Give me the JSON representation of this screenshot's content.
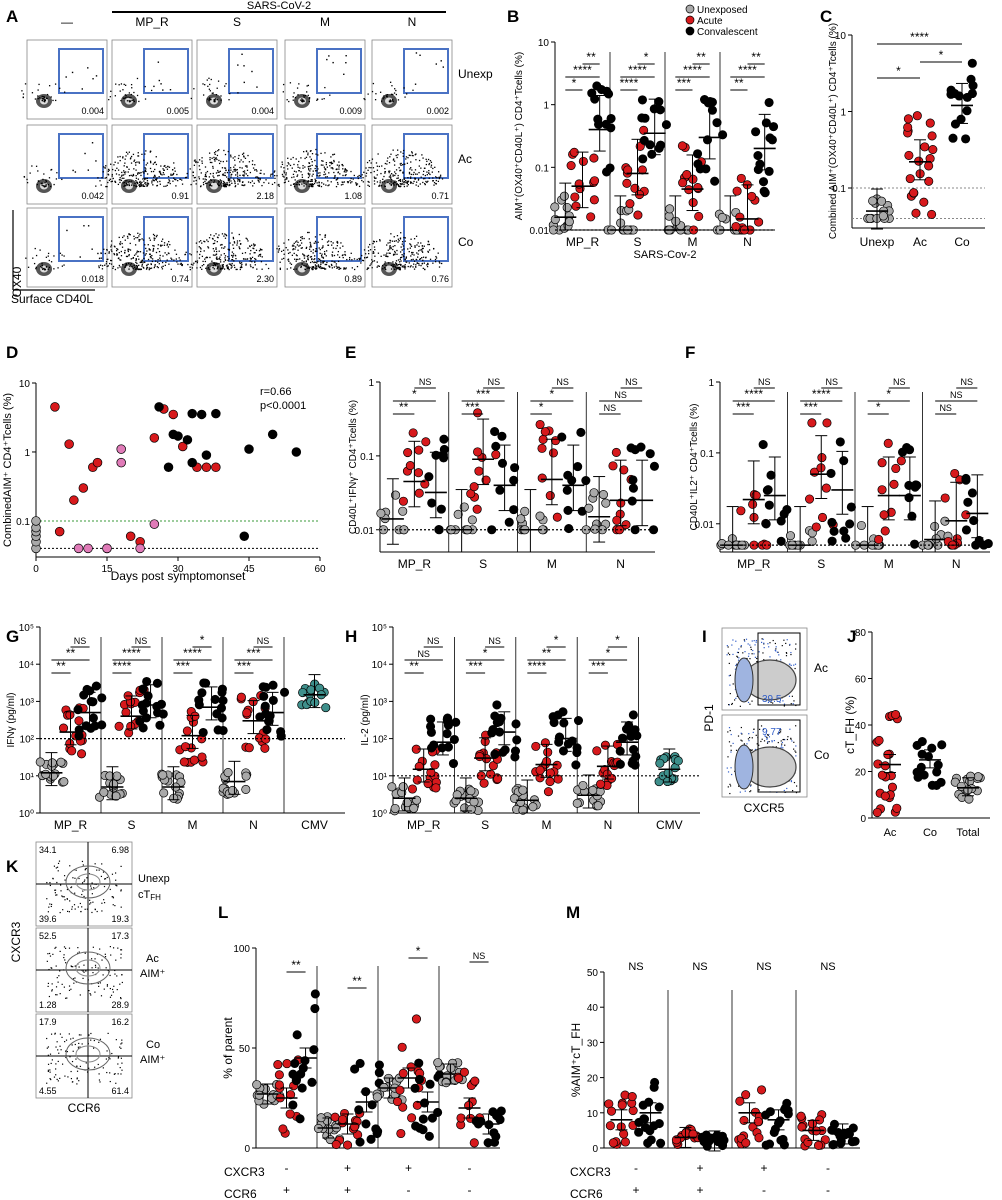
{
  "colors": {
    "unexposed": "#a9a9a9",
    "acute": "#d7191c",
    "convalescent": "#000000",
    "pink": "#e07bb8",
    "cmv": "#3e8f8b",
    "gate": "#4a72c4",
    "ref_green": "#3a9a3a",
    "cfh_blue": "#2f5cc8"
  },
  "panel_A": {
    "letter": "A",
    "col_headers": [
      "—",
      "MP_R",
      "S",
      "M",
      "N"
    ],
    "super_header": "SARS-CoV-2",
    "row_labels": [
      "Unexp",
      "Ac",
      "Co"
    ],
    "values": [
      [
        "0.004",
        "0.005",
        "0.004",
        "0.009",
        "0.002"
      ],
      [
        "0.042",
        "0.91",
        "2.18",
        "1.08",
        "0.71"
      ],
      [
        "0.018",
        "0.74",
        "2.30",
        "0.89",
        "0.76"
      ]
    ],
    "x_axis": "Surface CD40L",
    "y_axis": "OX40"
  },
  "chart_data": [
    {
      "id": "B",
      "type": "scatter",
      "letter": "B",
      "ylabel": "AIM⁺(OX40⁺CD40L⁺) CD4⁺Tcells (%)",
      "xlabel": "SARS-Cov-2",
      "scale": "log",
      "ylim": [
        0.01,
        10
      ],
      "yticks": [
        "0.01",
        "0.1",
        "1",
        "10"
      ],
      "groups": [
        "MP_R",
        "S",
        "M",
        "N"
      ],
      "legend": [
        "Unexposed",
        "Acute",
        "Convalescent"
      ],
      "median_bars": [
        [
          0.016,
          0.05,
          0.4
        ],
        [
          0.01,
          0.08,
          0.35
        ],
        [
          0.01,
          0.045,
          0.3
        ],
        [
          0.01,
          0.015,
          0.2
        ]
      ],
      "significance": [
        [
          "*",
          "****",
          "**"
        ],
        [
          "****",
          "****",
          "*"
        ],
        [
          "***",
          "****",
          "**"
        ],
        [
          "**",
          "****",
          "**"
        ]
      ]
    },
    {
      "id": "C",
      "type": "scatter",
      "letter": "C",
      "ylabel": "Combined AIM⁺(OX40⁺CD40L⁺) CD4⁺Tcells (%)",
      "scale": "log",
      "ylim": [
        0.03,
        10
      ],
      "yticks": [
        "0.1",
        "1",
        "10"
      ],
      "categories": [
        "Unexp",
        "Ac",
        "Co"
      ],
      "median_bars": [
        0.05,
        0.22,
        1.2
      ],
      "significance": [
        "****",
        "*",
        "*"
      ]
    },
    {
      "id": "D",
      "type": "scatter",
      "letter": "D",
      "ylabel": "CombinedAIM⁺ CD4⁺Tcells (%)",
      "xlabel": "Days post symptomonset",
      "scale": "log",
      "ylim": [
        0.03,
        10
      ],
      "xlim": [
        0,
        60
      ],
      "xticks": [
        "0",
        "15",
        "30",
        "45",
        "60"
      ],
      "yticks": [
        "0.1",
        "1",
        "10"
      ],
      "stats": [
        "r=0.66",
        "p<0.0001"
      ],
      "points_acute": [
        [
          4,
          4.5
        ],
        [
          5,
          0.07
        ],
        [
          7,
          1.3
        ],
        [
          8,
          0.2
        ],
        [
          10,
          0.3
        ],
        [
          12,
          0.6
        ],
        [
          13,
          0.7
        ],
        [
          15,
          0.04
        ],
        [
          20,
          0.06
        ],
        [
          22,
          0.05
        ],
        [
          25,
          1.6
        ],
        [
          27,
          4.2
        ],
        [
          29,
          3.5
        ],
        [
          31,
          1.2
        ],
        [
          34,
          0.6
        ],
        [
          36,
          0.6
        ],
        [
          38,
          0.6
        ]
      ],
      "points_conv": [
        [
          26,
          4.5
        ],
        [
          28,
          0.6
        ],
        [
          29,
          1.8
        ],
        [
          30,
          1.7
        ],
        [
          32,
          1.5
        ],
        [
          33,
          0.7
        ],
        [
          33,
          3.6
        ],
        [
          35,
          3.5
        ],
        [
          36,
          0.9
        ],
        [
          38,
          3.6
        ],
        [
          44,
          0.06
        ],
        [
          45,
          1.1
        ],
        [
          50,
          1.8
        ],
        [
          55,
          1.0
        ]
      ],
      "points_pink": [
        [
          18,
          1.1
        ],
        [
          18,
          0.7
        ],
        [
          22,
          0.04
        ],
        [
          25,
          0.09
        ],
        [
          9,
          0.04
        ],
        [
          11,
          0.04
        ],
        [
          15,
          0.04
        ]
      ],
      "points_unexp": [
        [
          0,
          0.04
        ],
        [
          0,
          0.05
        ],
        [
          0,
          0.06
        ],
        [
          0,
          0.07
        ],
        [
          0,
          0.08
        ],
        [
          0,
          0.1
        ]
      ]
    },
    {
      "id": "E",
      "type": "scatter",
      "letter": "E",
      "ylabel": "CD40L⁺IFNγ⁺ CD4⁺Tcells (%)",
      "scale": "log",
      "ylim": [
        0.005,
        1
      ],
      "yticks": [
        "0.01",
        "0.1",
        "1"
      ],
      "groups": [
        "MP_R",
        "S",
        "M",
        "N"
      ],
      "median_bars": [
        [
          0.014,
          0.045,
          0.032
        ],
        [
          0.01,
          0.09,
          0.04
        ],
        [
          0.01,
          0.048,
          0.04
        ],
        [
          0.015,
          0.025,
          0.025
        ]
      ],
      "significance": [
        [
          "**",
          "*",
          "NS"
        ],
        [
          "***",
          "***",
          "NS"
        ],
        [
          "*",
          "*",
          "NS"
        ],
        [
          "NS",
          "NS",
          "NS"
        ]
      ]
    },
    {
      "id": "F",
      "type": "scatter",
      "letter": "F",
      "ylabel": "CD40L⁺IL2⁺ CD4⁺Tcells (%)",
      "scale": "log",
      "ylim": [
        0.004,
        1
      ],
      "yticks": [
        "0.01",
        "0.1",
        "1"
      ],
      "groups": [
        "MP_R",
        "S",
        "M",
        "N"
      ],
      "median_bars": [
        [
          0.005,
          0.022,
          0.025
        ],
        [
          0.005,
          0.05,
          0.03
        ],
        [
          0.005,
          0.025,
          0.025
        ],
        [
          0.006,
          0.011,
          0.014
        ]
      ],
      "significance": [
        [
          "***",
          "****",
          "NS"
        ],
        [
          "***",
          "****",
          "NS"
        ],
        [
          "*",
          "*",
          "NS"
        ],
        [
          "NS",
          "NS",
          "NS"
        ]
      ]
    },
    {
      "id": "G",
      "type": "scatter",
      "letter": "G",
      "ylabel": "IFNγ (pg/ml)",
      "scale": "log",
      "ylim": [
        1,
        100000
      ],
      "yticks": [
        "10⁰",
        "10¹",
        "10²",
        "10³",
        "10⁴",
        "10⁵"
      ],
      "groups": [
        "MP_R",
        "S",
        "M",
        "N",
        "CMV"
      ],
      "median_bars": [
        [
          12,
          150,
          500
        ],
        [
          5,
          400,
          800
        ],
        [
          5,
          120,
          700
        ],
        [
          7,
          300,
          500
        ],
        [
          1500
        ]
      ],
      "significance": [
        [
          "**",
          "**",
          "NS"
        ],
        [
          "****",
          "****",
          "NS"
        ],
        [
          "***",
          "****",
          "*"
        ],
        [
          "***",
          "***",
          "NS"
        ]
      ]
    },
    {
      "id": "H",
      "type": "scatter",
      "letter": "H",
      "ylabel": "IL-2 (pg/ml)",
      "scale": "log",
      "ylim": [
        1,
        100000
      ],
      "yticks": [
        "10⁰",
        "10¹",
        "10²",
        "10³",
        "10⁴",
        "10⁵"
      ],
      "groups": [
        "MP_R",
        "S",
        "M",
        "N",
        "CMV"
      ],
      "median_bars": [
        [
          2.5,
          15,
          80
        ],
        [
          2.5,
          30,
          150
        ],
        [
          2.2,
          20,
          100
        ],
        [
          3,
          18,
          80
        ],
        [
          15
        ]
      ],
      "significance": [
        [
          "**",
          "NS",
          "NS"
        ],
        [
          "***",
          "*",
          "NS"
        ],
        [
          "****",
          "**",
          "*"
        ],
        [
          "***",
          "*",
          "*"
        ]
      ]
    },
    {
      "id": "J",
      "type": "scatter",
      "letter": "J",
      "ylabel": "cT_FH (%)",
      "ylim": [
        0,
        80
      ],
      "yticks": [
        "0",
        "20",
        "40",
        "60",
        "80"
      ],
      "categories": [
        "Ac",
        "Co",
        "Total"
      ],
      "median_bars": [
        23,
        25,
        13
      ]
    },
    {
      "id": "L",
      "type": "scatter",
      "letter": "L",
      "ylabel": "% of parent",
      "ylim": [
        0,
        100
      ],
      "yticks": [
        "0",
        "50",
        "100"
      ],
      "subsets": [
        [
          "-",
          "+"
        ],
        [
          "+",
          "+"
        ],
        [
          "+",
          "-"
        ],
        [
          "-",
          "-"
        ]
      ],
      "row_labels": [
        "CXCR3",
        "CCR6"
      ],
      "median_bars": [
        [
          27,
          25,
          45
        ],
        [
          10,
          12,
          23
        ],
        [
          30,
          35,
          23
        ],
        [
          37,
          20,
          12
        ]
      ],
      "significance": [
        "**",
        "**",
        "*",
        "NS"
      ]
    },
    {
      "id": "M",
      "type": "scatter",
      "letter": "M",
      "ylabel": "%AIM⁺cT_FH",
      "ylim": [
        0,
        50
      ],
      "yticks": [
        "0",
        "10",
        "20",
        "30",
        "40",
        "50"
      ],
      "subsets": [
        [
          "-",
          "+"
        ],
        [
          "+",
          "+"
        ],
        [
          "+",
          "-"
        ],
        [
          "-",
          "-"
        ]
      ],
      "row_labels": [
        "CXCR3",
        "CCR6"
      ],
      "median_bars": [
        [
          8,
          10
        ],
        [
          3,
          2
        ],
        [
          10,
          8
        ],
        [
          5,
          4
        ]
      ],
      "significance": [
        "NS",
        "NS",
        "NS",
        "NS"
      ]
    }
  ],
  "panel_I": {
    "letter": "I",
    "rows": [
      "Ac",
      "Co"
    ],
    "values": [
      "39.5",
      "9.77"
    ],
    "x_axis": "CXCR5",
    "y_axis": "PD-1"
  },
  "panel_K": {
    "letter": "K",
    "rows": [
      {
        "label": "Unexp cT_FH",
        "q": [
          "34.1",
          "6.98",
          "39.6",
          "19.3"
        ]
      },
      {
        "label": "Ac AIM⁺",
        "q": [
          "52.5",
          "17.3",
          "1.28",
          "28.9"
        ]
      },
      {
        "label": "Co AIM⁺",
        "q": [
          "17.9",
          "16.2",
          "4.55",
          "61.4"
        ]
      }
    ],
    "x_axis": "CCR6",
    "y_axis": "CXCR3"
  }
}
